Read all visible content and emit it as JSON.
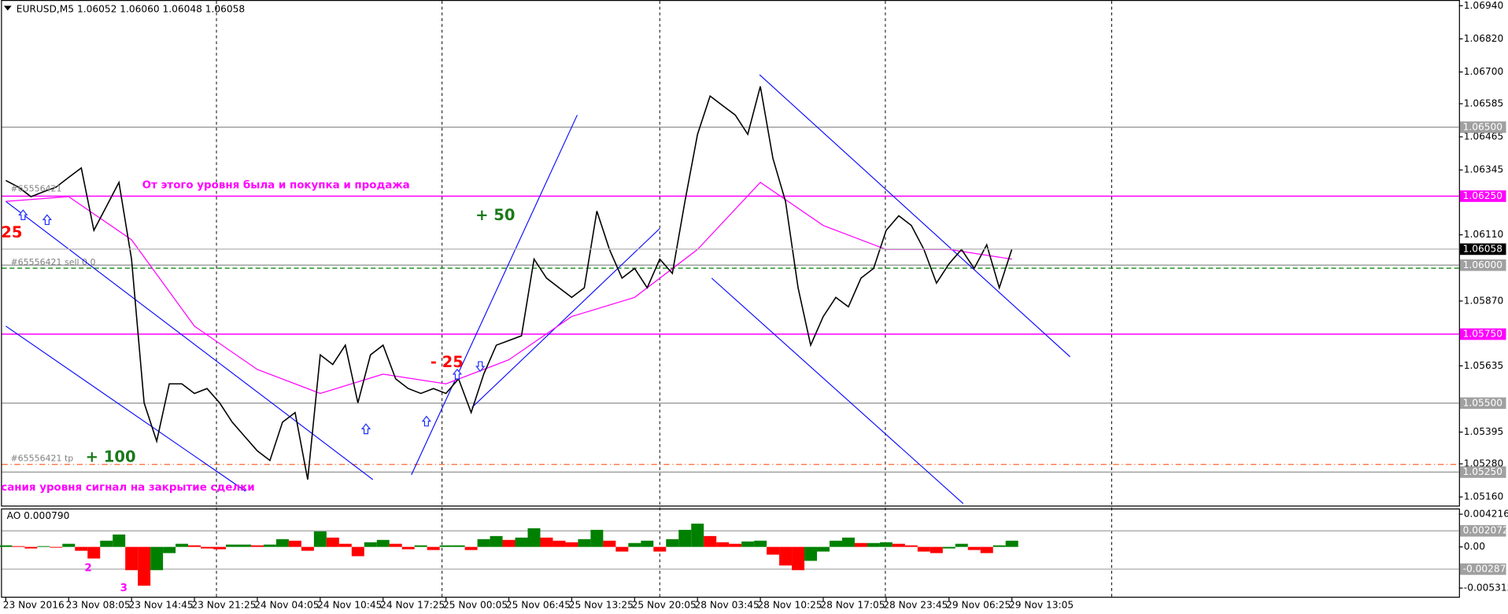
{
  "chart_data": [
    {
      "type": "line",
      "title": "EURUSD,M5  1.06052 1.06060 1.06048 1.06058",
      "xlim": [
        0,
        1850
      ],
      "ylim": [
        1.0516,
        1.0694
      ],
      "xticks": [
        {
          "value": 0,
          "label": "23 Nov 2016"
        },
        {
          "value": 80,
          "label": "23 Nov 08:05"
        },
        {
          "value": 160,
          "label": "23 Nov 14:45"
        },
        {
          "value": 240,
          "label": "23 Nov 21:25"
        },
        {
          "value": 320,
          "label": "24 Nov 04:05"
        },
        {
          "value": 400,
          "label": "24 Nov 10:45"
        },
        {
          "value": 480,
          "label": "24 Nov 17:25"
        },
        {
          "value": 560,
          "label": "25 Nov 00:05"
        },
        {
          "value": 640,
          "label": "25 Nov 06:45"
        },
        {
          "value": 720,
          "label": "25 Nov 13:25"
        },
        {
          "value": 800,
          "label": "25 Nov 20:05"
        },
        {
          "value": 880,
          "label": "28 Nov 03:45"
        },
        {
          "value": 960,
          "label": "28 Nov 10:25"
        },
        {
          "value": 1040,
          "label": "28 Nov 17:05"
        },
        {
          "value": 1120,
          "label": "28 Nov 23:45"
        },
        {
          "value": 1200,
          "label": "29 Nov 06:25"
        },
        {
          "value": 1280,
          "label": "29 Nov 13:05"
        }
      ],
      "yticks": [
        {
          "value": 1.0694,
          "label": "1.06940"
        },
        {
          "value": 1.0682,
          "label": "1.06820"
        },
        {
          "value": 1.067,
          "label": "1.06700"
        },
        1.06585,
        1.06465,
        1.06345,
        {
          "value": 1.0611,
          "label": "1.06110"
        },
        {
          "value": 1.0587,
          "label": "1.05870"
        },
        1.05635,
        1.05395,
        {
          "value": 1.0528,
          "label": "1.05280"
        },
        {
          "value": 1.0516,
          "label": "1.05160"
        }
      ],
      "vlines": [
        268,
        555,
        832,
        1119,
        1407
      ],
      "series": [
        {
          "color": "#000000",
          "x": [
            0,
            16,
            32,
            48,
            64,
            80,
            96,
            112,
            128,
            144,
            160,
            176,
            192,
            208,
            224,
            240,
            256,
            272,
            288,
            304,
            320,
            336,
            352,
            368,
            384,
            400,
            416,
            432,
            448,
            464,
            480,
            496,
            512,
            528,
            544,
            560,
            576,
            592,
            608,
            624,
            640,
            656,
            672,
            688,
            704,
            720,
            736,
            752,
            768,
            784,
            800,
            816,
            832,
            848,
            864,
            880,
            896,
            912,
            928,
            944,
            960,
            976,
            992,
            1008,
            1024,
            1040,
            1056,
            1072,
            1088,
            1104,
            1120,
            1136,
            1152,
            1168,
            1184,
            1200,
            1216,
            1232,
            1248,
            1264,
            1280
          ],
          "values": [
            1.06307,
            1.06283,
            1.06248,
            1.06266,
            1.06283,
            1.06318,
            1.06352,
            1.06126,
            1.06213,
            1.063,
            1.06022,
            1.05501,
            1.05362,
            1.0557,
            1.0557,
            1.05535,
            1.05553,
            1.05501,
            1.05431,
            1.05379,
            1.05327,
            1.05292,
            1.05431,
            1.05466,
            1.05223,
            1.05675,
            1.0564,
            1.0571,
            1.05501,
            1.05675,
            1.0571,
            1.05588,
            1.05553,
            1.05535,
            1.05553,
            1.05535,
            1.05588,
            1.05466,
            1.05605,
            1.0571,
            1.05727,
            1.05744,
            1.06022,
            1.05953,
            1.05918,
            1.05883,
            1.05918,
            1.06196,
            1.06057,
            1.05953,
            1.05988,
            1.05918,
            1.06022,
            1.0597,
            1.06231,
            1.06474,
            1.06613,
            1.06578,
            1.06544,
            1.06474,
            1.06648,
            1.06387,
            1.06231,
            1.05918,
            1.0571,
            1.05814,
            1.05883,
            1.05849,
            1.05953,
            1.05988,
            1.06126,
            1.06179,
            1.06144,
            1.06057,
            1.05935,
            1.06005,
            1.06057,
            1.05988,
            1.06074,
            1.05918,
            1.06058
          ]
        },
        {
          "color": "#ff00ff",
          "x": [
            0,
            80,
            160,
            240,
            320,
            400,
            480,
            560,
            640,
            720,
            800,
            880,
            960,
            1040,
            1120,
            1200,
            1280
          ],
          "values": [
            1.06231,
            1.06248,
            1.06092,
            1.05779,
            1.05622,
            1.05535,
            1.05605,
            1.0557,
            1.05657,
            1.05814,
            1.05883,
            1.06057,
            1.063,
            1.06144,
            1.06057,
            1.06057,
            1.06022
          ]
        }
      ],
      "trend_lines": [
        {
          "color": "#0000ff",
          "x": [
            0,
            467
          ],
          "y": [
            1.06231,
            1.05223
          ]
        },
        {
          "color": "#0000ff",
          "x": [
            0,
            305
          ],
          "y": [
            1.05779,
            1.05181
          ]
        },
        {
          "color": "#0000ff",
          "x": [
            516,
            727
          ],
          "y": [
            1.0524,
            1.06544
          ]
        },
        {
          "color": "#0000ff",
          "x": [
            593,
            832
          ],
          "y": [
            1.05484,
            1.06133
          ]
        },
        {
          "color": "#0000ff",
          "x": [
            959,
            1354
          ],
          "y": [
            1.0669,
            1.05668
          ]
        },
        {
          "color": "#0000ff",
          "x": [
            898,
            1218
          ],
          "y": [
            1.05953,
            1.05136
          ]
        }
      ],
      "levels": [
        {
          "value": 1.065,
          "label": "1.06500",
          "color": "#a0a0a0"
        },
        {
          "value": 1.0625,
          "label": "1.06250",
          "color": "#ff00ff"
        },
        {
          "value": 1.06,
          "label": "1.06000",
          "color": "#a0a0a0"
        },
        {
          "value": 1.0575,
          "label": "1.05750",
          "color": "#ff00ff"
        },
        {
          "value": 1.055,
          "label": "1.05500",
          "color": "#a0a0a0"
        },
        {
          "value": 1.0525,
          "label": "1.05250",
          "color": "#a0a0a0"
        }
      ],
      "order_lines": [
        {
          "value": 1.05989,
          "color": "#008000",
          "label": "#65556421 sell 0.0"
        },
        {
          "value": 1.05278,
          "color": "#ff6633",
          "label": "#65556421 tp"
        }
      ],
      "annotations": [
        "От этого уровня была и покупка и продажа",
        "+ 50",
        "- 25",
        "25",
        "+ 100",
        "сания уровня сигнал на закрытие сделки",
        "#65556421"
      ]
    },
    {
      "type": "bar",
      "title": "AO 0.000790",
      "ylim": [
        -0.005315,
        0.004216
      ],
      "yticks": [
        0.004216,
        {
          "value": 0,
          "label": "0.00"
        },
        -0.005315
      ],
      "levels": [
        0.002072,
        -0.00287
      ],
      "up_color": "#008000",
      "down_color": "#ff0000",
      "x": [
        0,
        16,
        32,
        48,
        64,
        80,
        96,
        112,
        128,
        144,
        160,
        176,
        192,
        208,
        224,
        240,
        256,
        272,
        288,
        304,
        320,
        336,
        352,
        368,
        384,
        400,
        416,
        432,
        448,
        464,
        480,
        496,
        512,
        528,
        544,
        560,
        576,
        592,
        608,
        624,
        640,
        656,
        672,
        688,
        704,
        720,
        736,
        752,
        768,
        784,
        800,
        816,
        832,
        848,
        864,
        880,
        896,
        912,
        928,
        944,
        960,
        976,
        992,
        1008,
        1024,
        1040,
        1056,
        1072,
        1088,
        1104,
        1120,
        1136,
        1152,
        1168,
        1184,
        1200,
        1216,
        1232,
        1248,
        1264,
        1280
      ],
      "values": [
        0.0002,
        0.0001,
        -0.0002,
        0.0001,
        -0.0001,
        0.0004,
        -0.0005,
        -0.0015,
        0.0008,
        0.0016,
        -0.003,
        -0.005,
        -0.003,
        -0.0008,
        0.0004,
        0.0002,
        -0.0002,
        -0.0003,
        0.0003,
        0.0003,
        0.0002,
        0.0003,
        0.001,
        0.0008,
        -0.0005,
        0.002,
        0.0012,
        0.0004,
        -0.0012,
        0.0006,
        0.0009,
        0.0004,
        -0.0003,
        0.0002,
        -0.0004,
        0.0002,
        0.0002,
        -0.0004,
        0.001,
        0.0014,
        0.0009,
        0.0012,
        0.0024,
        0.0012,
        0.0008,
        0.0006,
        0.001,
        0.0022,
        0.0008,
        -0.0006,
        0.0005,
        0.0008,
        -0.0006,
        0.001,
        0.0022,
        0.003,
        0.0014,
        0.0006,
        0.0004,
        0.0007,
        0.0008,
        -0.001,
        -0.0024,
        -0.003,
        -0.0018,
        -0.0006,
        0.0008,
        0.0012,
        0.0005,
        0.0005,
        0.0006,
        0.0004,
        0.0002,
        -0.0006,
        -0.0008,
        -0.0002,
        0.0004,
        -0.0004,
        -0.0008,
        0.0002,
        0.0008
      ],
      "annotations": [
        "2",
        "3"
      ]
    }
  ]
}
